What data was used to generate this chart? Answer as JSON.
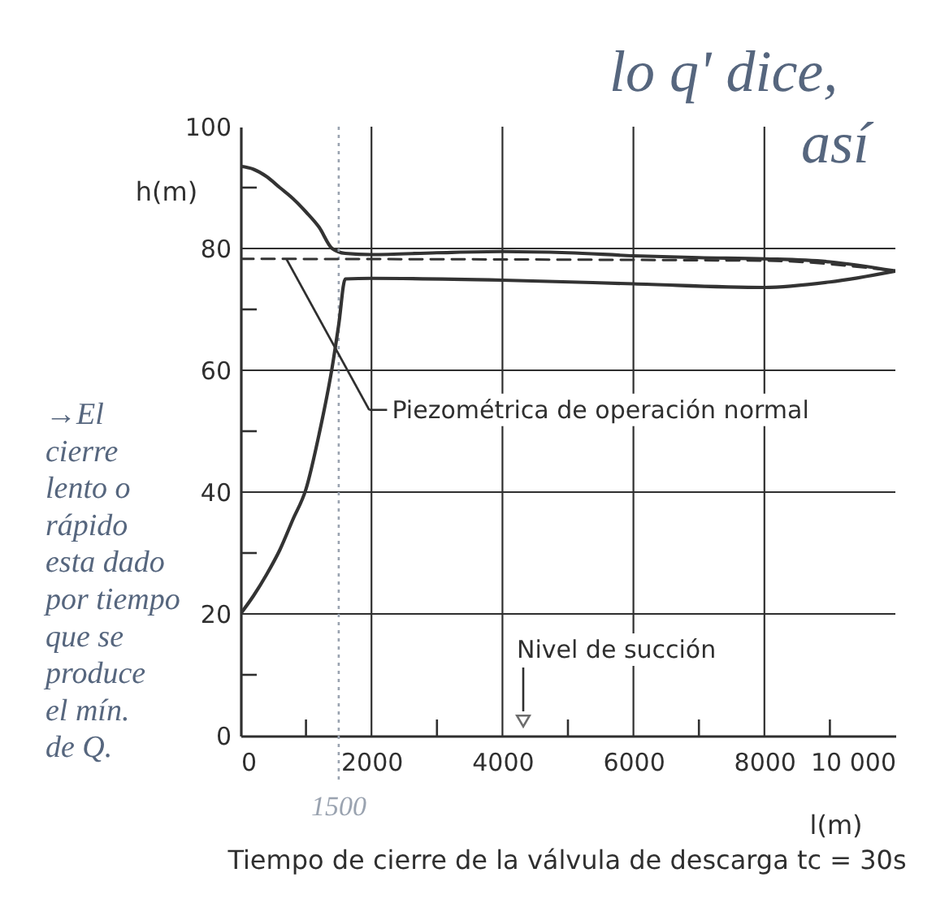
{
  "chart_data": {
    "type": "line",
    "xlabel": "l(m)",
    "ylabel": "h(m)",
    "xlim": [
      0,
      10000
    ],
    "ylim": [
      0,
      100
    ],
    "xticks": [
      0,
      {
        "value": 1000,
        "label": null
      },
      2000,
      {
        "value": 3000,
        "label": null
      },
      4000,
      {
        "value": 5000,
        "label": null
      },
      6000,
      {
        "value": 7000,
        "label": null
      },
      8000,
      {
        "value": 9000,
        "label": null
      },
      {
        "value": 10000,
        "label": "10 000"
      }
    ],
    "yticks": [
      0,
      {
        "value": 10,
        "label": null
      },
      20,
      {
        "value": 30,
        "label": null
      },
      40,
      {
        "value": 50,
        "label": null
      },
      60,
      {
        "value": 70,
        "label": null
      },
      80,
      {
        "value": 90,
        "label": null
      },
      100
    ],
    "grid": true,
    "series": [
      {
        "color": "#333333",
        "x": [
          0,
          200,
          400,
          600,
          800,
          1000,
          1200,
          1400,
          1600,
          2000,
          3000,
          4000,
          5000,
          6000,
          7000,
          8000,
          9000,
          10000
        ],
        "values": [
          93.5,
          93,
          91.8,
          90,
          88.2,
          86,
          83.5,
          80,
          79.2,
          79,
          79.3,
          79.5,
          79.3,
          78.8,
          78.5,
          78.3,
          77.8,
          76.3
        ]
      },
      {
        "color": "#333333",
        "line_style": "dashed",
        "x": [
          0,
          8000,
          10000
        ],
        "values": [
          78.3,
          78,
          76.3
        ]
      },
      {
        "color": "#333333",
        "x": [
          0,
          200,
          400,
          600,
          800,
          1000,
          1200,
          1400,
          1500,
          1600,
          2000,
          4000,
          6000,
          8000,
          9000,
          10000
        ],
        "values": [
          20,
          23,
          26.5,
          30.5,
          35.5,
          40.5,
          49.5,
          60.5,
          67.5,
          75,
          75.1,
          74.8,
          74.2,
          73.6,
          74.5,
          76.3
        ]
      }
    ],
    "ref_lines": [
      {
        "axis": "x",
        "value": 1500,
        "label": "1500",
        "color": "#9aa3b0",
        "line_style": "dotted"
      }
    ],
    "annotations": [
      {
        "text": "Piezométrica de operación normal",
        "x": 700,
        "y": 78.3
      },
      "Nivel de succión",
      "Tiempo de cierre de la válvula de descarga tc = 30s",
      "→El\ncierre\nlento o\nrápido\nesta dado\npor tiempo\nque se\nproduce\nel mín.\nde Q.",
      "lo q' dice,\nasí"
    ]
  }
}
